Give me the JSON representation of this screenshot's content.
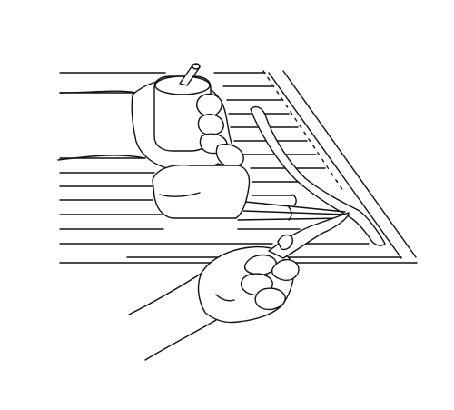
{
  "colors": {
    "line": "#111111",
    "background": "#ffffff"
  }
}
